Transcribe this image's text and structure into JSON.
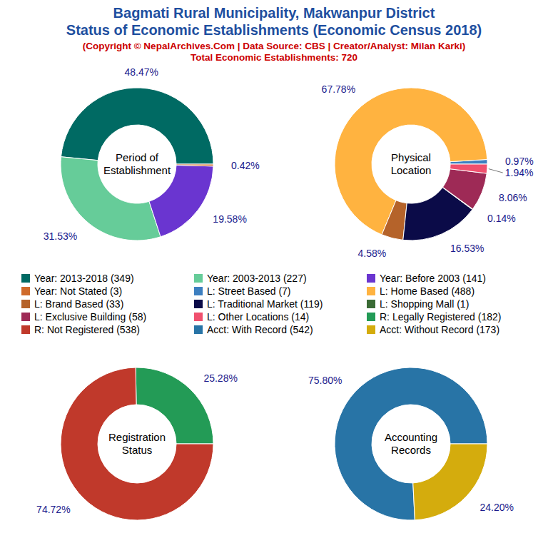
{
  "title": [
    "Bagmati Rural Municipality, Makwanpur District",
    "Status of Economic Establishments (Economic Census 2018)"
  ],
  "subtitle": "(Copyright © NepalArchives.Com | Data Source: CBS | Creator/Analyst: Milan Karki)",
  "total_label": "Total Economic Establishments: 720",
  "chart_data": [
    {
      "type": "pie",
      "title": "Period of\nEstablishment",
      "categories": [
        "Year: 2013-2018 (349)",
        "Year: 2003-2013 (227)",
        "Year: Before 2003 (141)",
        "Year: Not Stated (3)"
      ],
      "values": [
        48.47,
        31.53,
        19.58,
        0.42
      ],
      "value_labels": [
        "48.47%",
        "31.53%",
        "19.58%",
        "0.42%"
      ],
      "colors": [
        "#006a63",
        "#66cc99",
        "#6a35d0",
        "#cf6a2a"
      ],
      "data_labels": true
    },
    {
      "type": "pie",
      "title": "Physical\nLocation",
      "categories": [
        "L: Street Based (7)",
        "L: Home Based (488)",
        "L: Brand Based (33)",
        "L: Traditional Market (119)",
        "L: Shopping Mall (1)",
        "L: Exclusive Building (58)",
        "L: Other Locations (14)"
      ],
      "values": [
        0.97,
        67.78,
        4.58,
        16.53,
        0.14,
        8.06,
        1.94
      ],
      "value_labels": [
        "0.97%",
        "67.78%",
        "4.58%",
        "16.53%",
        "0.14%",
        "8.06%",
        "1.94%"
      ],
      "colors": [
        "#3d7fc0",
        "#ffb340",
        "#b5632a",
        "#0b0b48",
        "#3a6b35",
        "#9e2a56",
        "#f0506e"
      ],
      "data_labels": true
    },
    {
      "type": "pie",
      "title": "Registration\nStatus",
      "categories": [
        "R: Legally Registered (182)",
        "R: Not Registered (538)"
      ],
      "values": [
        25.28,
        74.72
      ],
      "value_labels": [
        "25.28%",
        "74.72%"
      ],
      "colors": [
        "#239b56",
        "#c0392b"
      ],
      "data_labels": true
    },
    {
      "type": "pie",
      "title": "Accounting\nRecords",
      "categories": [
        "Acct: With Record (542)",
        "Acct: Without Record (173)"
      ],
      "values": [
        75.8,
        24.2
      ],
      "value_labels": [
        "75.80%",
        "24.20%"
      ],
      "colors": [
        "#2874a6",
        "#d4ac0d"
      ],
      "data_labels": true
    }
  ]
}
